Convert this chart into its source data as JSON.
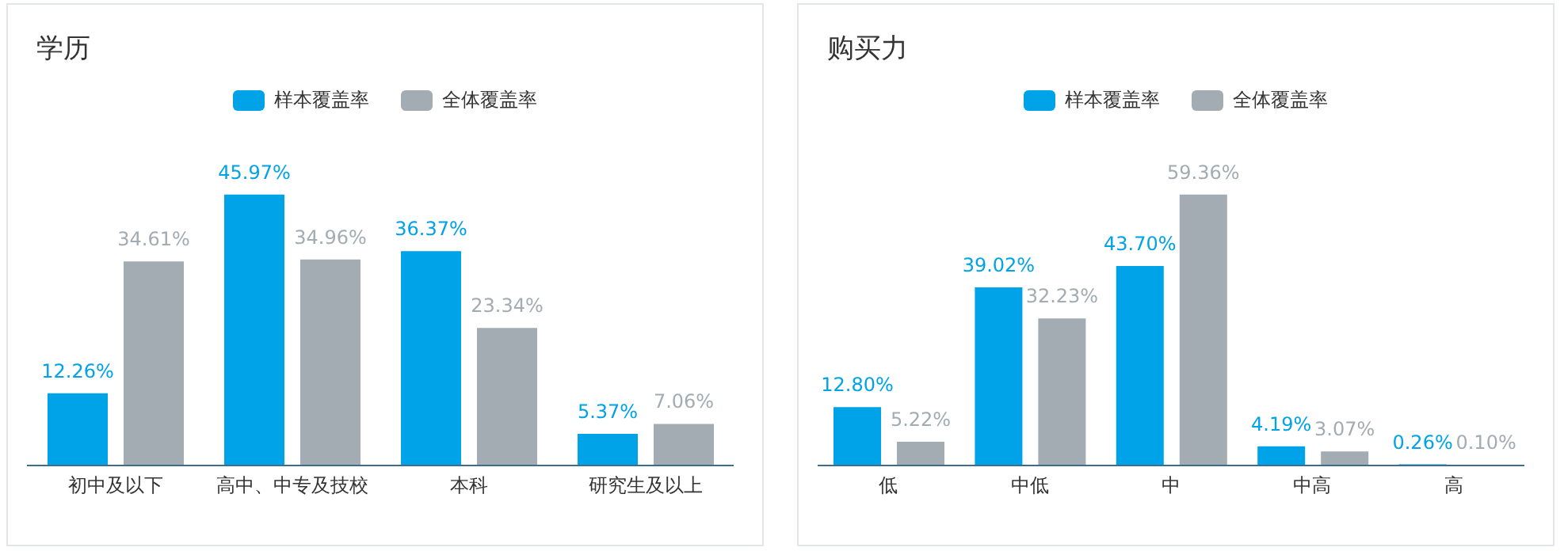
{
  "chart_data": [
    {
      "type": "bar",
      "title": "学历",
      "categories": [
        "初中及以下",
        "高中、中专及技校",
        "本科",
        "研究生及以上"
      ],
      "series": [
        {
          "name": "样本覆盖率",
          "color": "#00a2e8",
          "values": [
            12.26,
            45.97,
            36.37,
            5.37
          ],
          "value_labels": [
            "12.26%",
            "45.97%",
            "36.37%",
            "5.37%"
          ]
        },
        {
          "name": "全体覆盖率",
          "color": "#a2acb2",
          "values": [
            34.61,
            34.96,
            23.34,
            7.06
          ],
          "value_labels": [
            "34.61%",
            "34.96%",
            "23.34%",
            "7.06%"
          ]
        }
      ],
      "legend": "top",
      "grid": false
    },
    {
      "type": "bar",
      "title": "购买力",
      "categories": [
        "低",
        "中低",
        "中",
        "中高",
        "高"
      ],
      "series": [
        {
          "name": "样本覆盖率",
          "color": "#00a2e8",
          "values": [
            12.8,
            39.02,
            43.7,
            4.19,
            0.26
          ],
          "value_labels": [
            "12.80%",
            "39.02%",
            "43.70%",
            "4.19%",
            "0.26%"
          ]
        },
        {
          "name": "全体覆盖率",
          "color": "#a2acb2",
          "values": [
            5.22,
            32.23,
            59.36,
            3.07,
            0.1
          ],
          "value_labels": [
            "5.22%",
            "32.23%",
            "59.36%",
            "3.07%",
            "0.10%"
          ]
        }
      ],
      "legend": "top",
      "grid": false
    }
  ]
}
